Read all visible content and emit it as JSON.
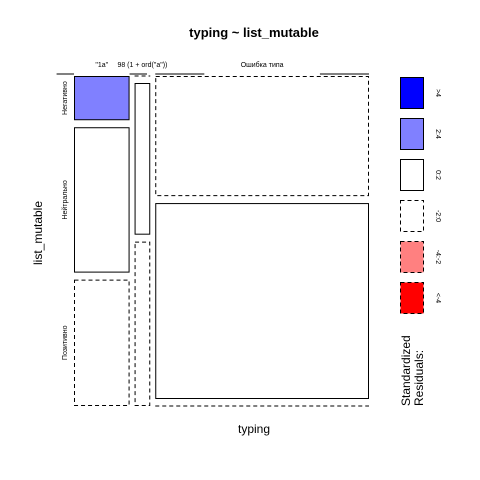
{
  "chart_data": {
    "type": "mosaic",
    "title": "typing ~ list_mutable",
    "xlabel": "typing",
    "ylabel": "list_mutable",
    "x_categories": [
      "\"1a\"",
      "98 (1 + ord(\"a\"))",
      "Ошибка типа"
    ],
    "y_categories": [
      "Негативно",
      "Нейтрально",
      "Позитивно"
    ],
    "x_proportions": [
      0.195,
      0.055,
      0.75
    ],
    "cells": [
      {
        "x": "\"1a\"",
        "y": "Негативно",
        "fraction": 0.14,
        "residual_class": "2:4"
      },
      {
        "x": "\"1a\"",
        "y": "Нейтрально",
        "fraction": 0.46,
        "residual_class": "0:2"
      },
      {
        "x": "\"1a\"",
        "y": "Позитивно",
        "fraction": 0.4,
        "residual_class": "-2:0"
      },
      {
        "x": "98 (1 + ord(\"a\"))",
        "y": "Негативно",
        "fraction": 0.0,
        "residual_class": "-2:0"
      },
      {
        "x": "98 (1 + ord(\"a\"))",
        "y": "Нейтрально",
        "fraction": 0.48,
        "residual_class": "0:2"
      },
      {
        "x": "98 (1 + ord(\"a\"))",
        "y": "Позитивно",
        "fraction": 0.52,
        "residual_class": "-2:0"
      },
      {
        "x": "Ошибка типа",
        "y": "Негативно",
        "fraction": 0.38,
        "residual_class": "-2:0"
      },
      {
        "x": "Ошибка типа",
        "y": "Нейтрально",
        "fraction": 0.62,
        "residual_class": "0:2"
      },
      {
        "x": "Ошибка типа",
        "y": "Позитивно",
        "fraction": 0.0,
        "residual_class": "-2:0"
      }
    ],
    "legend": {
      "title": "Standardized\nResiduals:",
      "placement": "right",
      "items": [
        {
          "label": ">4",
          "color": "#0000ff",
          "border": "solid"
        },
        {
          "label": "2:4",
          "color": "#8080ff",
          "border": "solid"
        },
        {
          "label": "0:2",
          "color": "#ffffff",
          "border": "solid"
        },
        {
          "label": "-2:0",
          "color": "#ffffff",
          "border": "dashed"
        },
        {
          "label": "-4:-2",
          "color": "#ff8080",
          "border": "dashed"
        },
        {
          "label": "<-4",
          "color": "#ff0000",
          "border": "dashed"
        }
      ]
    }
  }
}
